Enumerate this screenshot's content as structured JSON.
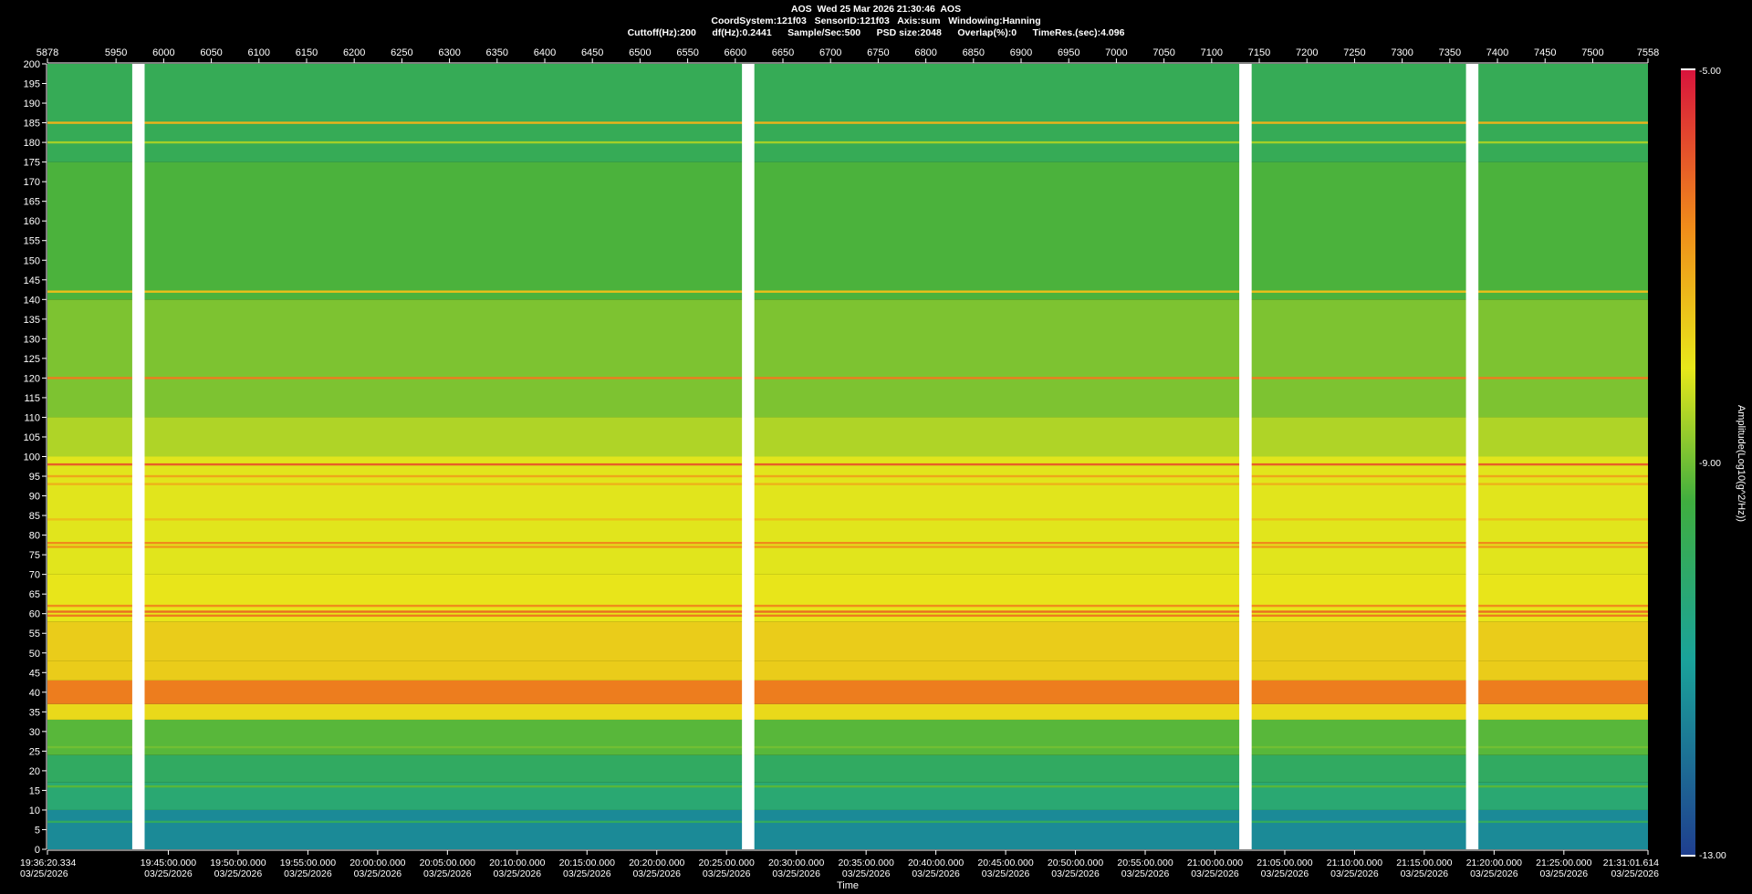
{
  "header": {
    "line1": "AOS  Wed 25 Mar 2026 21:30:46  AOS",
    "line2": "CoordSystem:121f03   SensorID:121f03   Axis:sum   Windowing:Hanning",
    "line3": "Cuttoff(Hz):200      df(Hz):0.2441      Sample/Sec:500      PSD size:2048      Overlap(%):0      TimeRes.(sec):4.096"
  },
  "colors": {
    "background": "#000000",
    "low": "#1f3f8f",
    "mid": "#e8e81a",
    "high": "#d8143c",
    "gap": "#ffffff"
  },
  "chart_data": {
    "type": "heatmap",
    "title": "AOS  Wed 25 Mar 2026 21:30:46  AOS",
    "xlabel": "Time",
    "ylabel": "",
    "colorbar_label": "Amplitude(Log10(g^2/Hz))",
    "colorbar_ticks": [
      "-5.00",
      "-9.00",
      "-13.00"
    ],
    "clim": [
      -13,
      -5
    ],
    "ylim": [
      0,
      200
    ],
    "y_ticks": [
      200,
      195,
      190,
      185,
      180,
      175,
      170,
      165,
      160,
      155,
      150,
      145,
      140,
      135,
      130,
      125,
      120,
      115,
      110,
      105,
      100,
      95,
      90,
      85,
      80,
      75,
      70,
      65,
      60,
      55,
      50,
      45,
      40,
      35,
      30,
      25,
      20,
      15,
      10,
      5,
      0
    ],
    "top_axis": {
      "range": [
        5878,
        7558
      ],
      "ticks": [
        5878,
        5950,
        6000,
        6050,
        6100,
        6150,
        6200,
        6250,
        6300,
        6350,
        6400,
        6450,
        6500,
        6550,
        6600,
        6650,
        6700,
        6750,
        6800,
        6850,
        6900,
        6950,
        7000,
        7050,
        7100,
        7150,
        7200,
        7250,
        7300,
        7350,
        7400,
        7450,
        7500,
        7558
      ]
    },
    "time_ticks": [
      {
        "time": "19:36:20.334",
        "date": "03/25/2026"
      },
      {
        "time": "19:45:00.000",
        "date": "03/25/2026"
      },
      {
        "time": "19:50:00.000",
        "date": "03/25/2026"
      },
      {
        "time": "19:55:00.000",
        "date": "03/25/2026"
      },
      {
        "time": "20:00:00.000",
        "date": "03/25/2026"
      },
      {
        "time": "20:05:00.000",
        "date": "03/25/2026"
      },
      {
        "time": "20:10:00.000",
        "date": "03/25/2026"
      },
      {
        "time": "20:15:00.000",
        "date": "03/25/2026"
      },
      {
        "time": "20:20:00.000",
        "date": "03/25/2026"
      },
      {
        "time": "20:25:00.000",
        "date": "03/25/2026"
      },
      {
        "time": "20:30:00.000",
        "date": "03/25/2026"
      },
      {
        "time": "20:35:00.000",
        "date": "03/25/2026"
      },
      {
        "time": "20:40:00.000",
        "date": "03/25/2026"
      },
      {
        "time": "20:45:00.000",
        "date": "03/25/2026"
      },
      {
        "time": "20:50:00.000",
        "date": "03/25/2026"
      },
      {
        "time": "20:55:00.000",
        "date": "03/25/2026"
      },
      {
        "time": "21:00:00.000",
        "date": "03/25/2026"
      },
      {
        "time": "21:05:00.000",
        "date": "03/25/2026"
      },
      {
        "time": "21:10:00.000",
        "date": "03/25/2026"
      },
      {
        "time": "21:15:00.000",
        "date": "03/25/2026"
      },
      {
        "time": "21:20:00.000",
        "date": "03/25/2026"
      },
      {
        "time": "21:25:00.000",
        "date": "03/25/2026"
      },
      {
        "time": "21:31:01.614",
        "date": "03/25/2026"
      }
    ],
    "data_gaps_top_axis": [
      [
        5967,
        5980
      ],
      [
        6607,
        6620
      ],
      [
        7129,
        7142
      ],
      [
        7367,
        7380
      ]
    ],
    "frequency_bands": [
      {
        "from": 0,
        "to": 10,
        "level": -11.5
      },
      {
        "from": 10,
        "to": 17,
        "level": -10.3
      },
      {
        "from": 17,
        "to": 24,
        "level": -10.0
      },
      {
        "from": 24,
        "to": 33,
        "level": -9.2
      },
      {
        "from": 33,
        "to": 37,
        "level": -7.8
      },
      {
        "from": 37,
        "to": 43,
        "level": -6.4
      },
      {
        "from": 43,
        "to": 48,
        "level": -7.6
      },
      {
        "from": 48,
        "to": 58,
        "level": -7.6
      },
      {
        "from": 58,
        "to": 70,
        "level": -8.0
      },
      {
        "from": 70,
        "to": 100,
        "level": -8.1
      },
      {
        "from": 100,
        "to": 110,
        "level": -8.5
      },
      {
        "from": 110,
        "to": 140,
        "level": -8.9
      },
      {
        "from": 140,
        "to": 175,
        "level": -9.3
      },
      {
        "from": 175,
        "to": 200,
        "level": -9.8
      }
    ],
    "tonal_lines": [
      {
        "freq": 185,
        "level": -7.2
      },
      {
        "freq": 180,
        "level": -8.6
      },
      {
        "freq": 142,
        "level": -7.4
      },
      {
        "freq": 120,
        "level": -6.4
      },
      {
        "freq": 98,
        "level": -6.0
      },
      {
        "freq": 95,
        "level": -7.0
      },
      {
        "freq": 93,
        "level": -7.2
      },
      {
        "freq": 84,
        "level": -7.4
      },
      {
        "freq": 78,
        "level": -6.6
      },
      {
        "freq": 77,
        "level": -6.8
      },
      {
        "freq": 62,
        "level": -6.6
      },
      {
        "freq": 60.5,
        "level": -6.2
      },
      {
        "freq": 59.5,
        "level": -6.4
      },
      {
        "freq": 26,
        "level": -9.0
      },
      {
        "freq": 16,
        "level": -9.2
      },
      {
        "freq": 7,
        "level": -10.0
      }
    ]
  }
}
